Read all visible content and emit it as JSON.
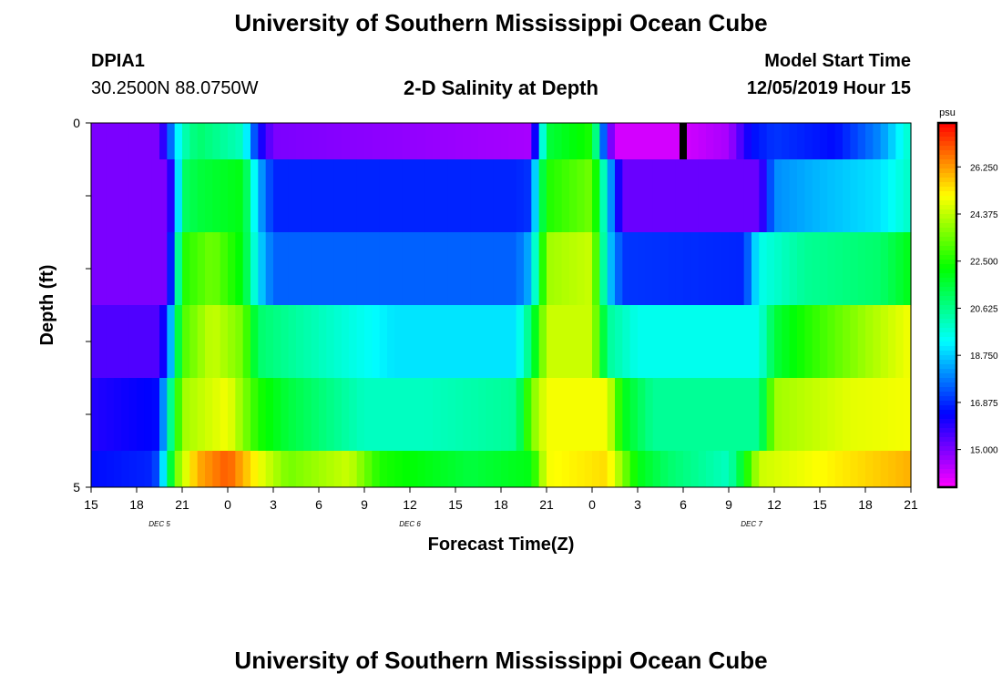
{
  "header": {
    "title": "University of Southern Mississippi Ocean Cube",
    "station_id": "DPIA1",
    "coordinates": "30.2500N 88.0750W",
    "subtitle": "2-D Salinity at Depth",
    "model_start_label": "Model Start Time",
    "model_start_value": "12/05/2019 Hour 15"
  },
  "footer": {
    "title": "University of Southern Mississippi Ocean Cube"
  },
  "chart_data": {
    "type": "heatmap",
    "title": "2-D Salinity at Depth",
    "xlabel": "Forecast Time(Z)",
    "ylabel": "Depth (ft)",
    "x_ticks": [
      "15",
      "18",
      "21",
      "0",
      "3",
      "6",
      "9",
      "12",
      "15",
      "18",
      "21",
      "0",
      "3",
      "6",
      "9",
      "12",
      "15",
      "18",
      "21"
    ],
    "date_labels": [
      {
        "label": "DEC 5",
        "hour_index": 4.5
      },
      {
        "label": "DEC 6",
        "hour_index": 21
      },
      {
        "label": "DEC 7",
        "hour_index": 43.5
      }
    ],
    "y_ticks": [
      "0",
      "",
      "",
      "",
      "",
      "5"
    ],
    "ylim": [
      0,
      5
    ],
    "x_range_hours": [
      0,
      54
    ],
    "colorbar": {
      "unit": "psu",
      "min": 13.5,
      "max": 28.0,
      "tick_labels": [
        "26.250",
        "24.375",
        "22.500",
        "20.625",
        "18.750",
        "16.875",
        "15.000"
      ]
    },
    "depth_layers": [
      {
        "depth_ft": 0.5,
        "keyframes": [
          [
            0,
            15
          ],
          [
            4.5,
            15
          ],
          [
            5.5,
            18.5
          ],
          [
            6,
            20
          ],
          [
            7,
            21
          ],
          [
            10,
            20
          ],
          [
            11,
            16.5
          ],
          [
            12,
            15
          ],
          [
            29,
            14.5
          ],
          [
            29.5,
            18
          ],
          [
            30,
            21.5
          ],
          [
            33,
            22.5
          ],
          [
            33.5,
            19
          ],
          [
            34,
            16
          ],
          [
            34.5,
            14
          ],
          [
            38,
            14
          ],
          [
            39,
            14
          ],
          [
            42,
            14.5
          ],
          [
            43.5,
            16.5
          ],
          [
            45,
            17
          ],
          [
            49,
            16.5
          ],
          [
            52,
            18
          ],
          [
            53,
            19
          ],
          [
            54,
            20
          ]
        ]
      },
      {
        "depth_ft": 1.5,
        "keyframes": [
          [
            0,
            15
          ],
          [
            5,
            15
          ],
          [
            5.5,
            17
          ],
          [
            6,
            21
          ],
          [
            7,
            21.5
          ],
          [
            10,
            22
          ],
          [
            11,
            18.5
          ],
          [
            12,
            16.8
          ],
          [
            28,
            16.8
          ],
          [
            29,
            17
          ],
          [
            29.5,
            20.5
          ],
          [
            30,
            22.5
          ],
          [
            33,
            23.5
          ],
          [
            34,
            19
          ],
          [
            35,
            15.2
          ],
          [
            44,
            15.2
          ],
          [
            45,
            18
          ],
          [
            48,
            18.5
          ],
          [
            52,
            19
          ],
          [
            54,
            20
          ]
        ]
      },
      {
        "depth_ft": 2.5,
        "keyframes": [
          [
            0,
            15
          ],
          [
            5,
            15
          ],
          [
            5.5,
            18.5
          ],
          [
            6,
            22.5
          ],
          [
            8,
            23.5
          ],
          [
            10,
            22
          ],
          [
            11,
            19
          ],
          [
            12,
            17.5
          ],
          [
            28,
            17.5
          ],
          [
            29,
            18.5
          ],
          [
            30,
            24
          ],
          [
            33,
            24.5
          ],
          [
            34,
            19
          ],
          [
            35,
            17
          ],
          [
            43,
            16.8
          ],
          [
            44,
            19.5
          ],
          [
            47,
            20.5
          ],
          [
            52,
            21
          ],
          [
            54,
            22
          ]
        ]
      },
      {
        "depth_ft": 3.5,
        "keyframes": [
          [
            0,
            15.5
          ],
          [
            4.5,
            15.5
          ],
          [
            5,
            17
          ],
          [
            6,
            23
          ],
          [
            8,
            24.5
          ],
          [
            10,
            23.5
          ],
          [
            11,
            21
          ],
          [
            13,
            20.5
          ],
          [
            20,
            19
          ],
          [
            28,
            19
          ],
          [
            29,
            21
          ],
          [
            30,
            24.5
          ],
          [
            33,
            24.5
          ],
          [
            34,
            20.5
          ],
          [
            36,
            19.5
          ],
          [
            44,
            19.5
          ],
          [
            45,
            21.5
          ],
          [
            47,
            22.5
          ],
          [
            51,
            24
          ],
          [
            54,
            25
          ]
        ]
      },
      {
        "depth_ft": 4.5,
        "keyframes": [
          [
            0,
            16
          ],
          [
            4.5,
            16.5
          ],
          [
            5,
            19.5
          ],
          [
            6,
            24
          ],
          [
            9,
            25
          ],
          [
            11,
            22.5
          ],
          [
            13,
            21.5
          ],
          [
            18,
            20
          ],
          [
            22,
            20
          ],
          [
            28,
            20.5
          ],
          [
            29,
            23.5
          ],
          [
            30,
            25
          ],
          [
            34,
            25
          ],
          [
            35,
            22
          ],
          [
            37,
            20.5
          ],
          [
            44,
            20.5
          ],
          [
            45,
            24
          ],
          [
            50,
            24.8
          ],
          [
            54,
            25
          ]
        ]
      },
      {
        "depth_ft": 5.0,
        "keyframes": [
          [
            0,
            16.5
          ],
          [
            4,
            16.8
          ],
          [
            4.5,
            17.5
          ],
          [
            5,
            20.5
          ],
          [
            5.8,
            24
          ],
          [
            7,
            26
          ],
          [
            9,
            27
          ],
          [
            11,
            25
          ],
          [
            13,
            23.5
          ],
          [
            17,
            24.5
          ],
          [
            19,
            22.5
          ],
          [
            25,
            21.5
          ],
          [
            29,
            22
          ],
          [
            30,
            25
          ],
          [
            34,
            25.5
          ],
          [
            36,
            22
          ],
          [
            38,
            21
          ],
          [
            42,
            20
          ],
          [
            43,
            22
          ],
          [
            44,
            24.5
          ],
          [
            54,
            26
          ]
        ]
      }
    ]
  }
}
